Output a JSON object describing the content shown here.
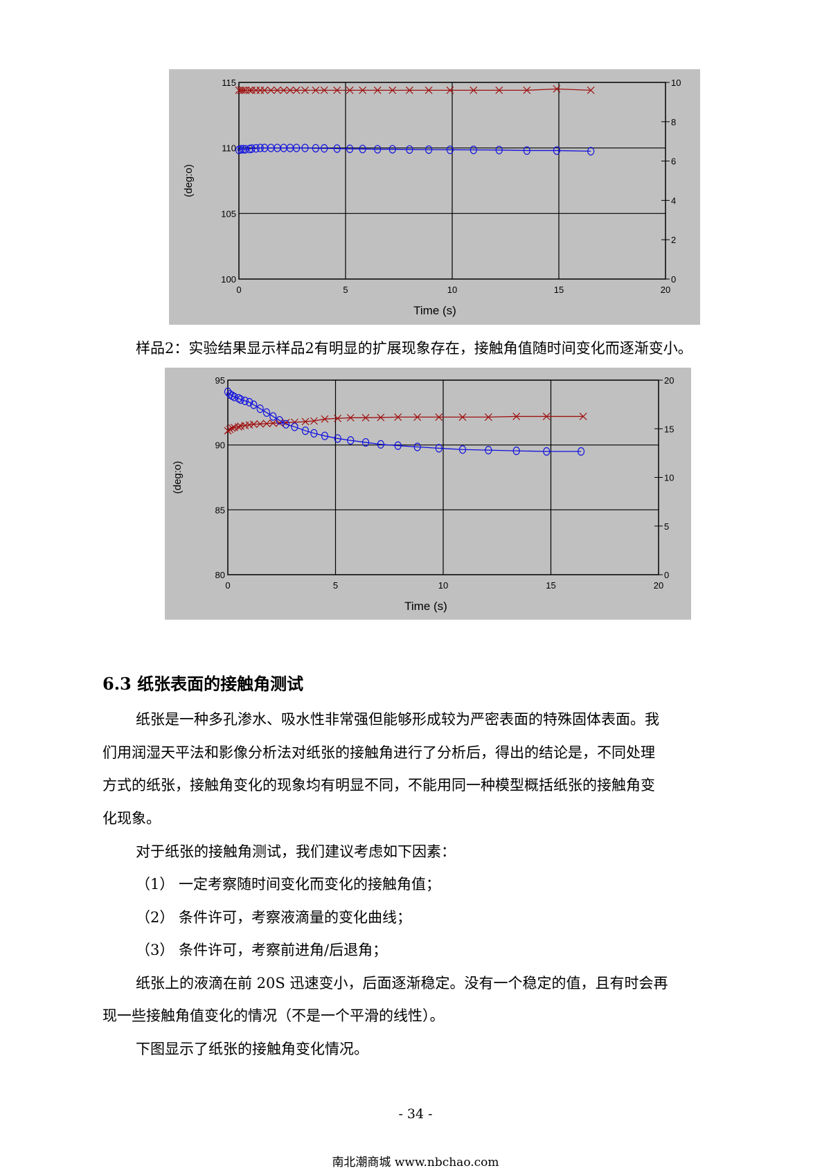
{
  "chart_data": [
    {
      "type": "line",
      "xlabel": "Time (s)",
      "ylabel": "(deg:o)",
      "xlim": [
        0,
        20
      ],
      "ylim": [
        100,
        115
      ],
      "y2lim": [
        0,
        10
      ],
      "xticks": [
        "0",
        "5",
        "10",
        "15",
        "20"
      ],
      "yticks": [
        "100",
        "105",
        "110",
        "115"
      ],
      "y2ticks": [
        "0",
        "2",
        "4",
        "6",
        "8",
        "10"
      ],
      "grid": true,
      "series": [
        {
          "marker": "x",
          "color": "#a01010",
          "axis": "left",
          "x": [
            0,
            0.1,
            0.2,
            0.3,
            0.5,
            0.6,
            0.8,
            1.0,
            1.2,
            1.5,
            1.8,
            2.1,
            2.4,
            2.7,
            3.1,
            3.6,
            4.0,
            4.6,
            5.2,
            5.8,
            6.5,
            7.2,
            8.0,
            8.9,
            9.9,
            11.0,
            12.2,
            13.5,
            14.9,
            16.5
          ],
          "y": [
            114.4,
            114.4,
            114.4,
            114.4,
            114.4,
            114.4,
            114.4,
            114.4,
            114.4,
            114.4,
            114.4,
            114.4,
            114.4,
            114.4,
            114.4,
            114.4,
            114.4,
            114.4,
            114.4,
            114.4,
            114.4,
            114.4,
            114.4,
            114.4,
            114.4,
            114.4,
            114.4,
            114.4,
            114.5,
            114.4
          ]
        },
        {
          "marker": "o",
          "color": "#1010e0",
          "axis": "left",
          "x": [
            0,
            0.1,
            0.2,
            0.3,
            0.5,
            0.6,
            0.8,
            1.0,
            1.2,
            1.5,
            1.8,
            2.1,
            2.4,
            2.7,
            3.1,
            3.6,
            4.0,
            4.6,
            5.2,
            5.8,
            6.5,
            7.2,
            8.0,
            8.9,
            9.9,
            11.0,
            12.2,
            13.5,
            14.9,
            16.5
          ],
          "y": [
            109.85,
            109.9,
            109.9,
            109.9,
            109.92,
            109.95,
            109.97,
            110.0,
            110.0,
            110.0,
            110.0,
            110.0,
            110.0,
            110.0,
            110.0,
            109.98,
            109.97,
            109.95,
            109.93,
            109.92,
            109.9,
            109.9,
            109.88,
            109.87,
            109.86,
            109.85,
            109.84,
            109.8,
            109.8,
            109.75
          ]
        }
      ]
    },
    {
      "type": "line",
      "xlabel": "Time (s)",
      "ylabel": "(deg:o)",
      "xlim": [
        0,
        20
      ],
      "ylim": [
        80,
        95
      ],
      "y2lim": [
        0,
        20
      ],
      "xticks": [
        "0",
        "5",
        "10",
        "15",
        "20"
      ],
      "yticks": [
        "80",
        "85",
        "90",
        "95"
      ],
      "y2ticks": [
        "0",
        "5",
        "10",
        "15",
        "20"
      ],
      "grid": true,
      "series": [
        {
          "marker": "x",
          "color": "#a01010",
          "axis": "left",
          "x": [
            0,
            0.1,
            0.2,
            0.3,
            0.5,
            0.6,
            0.8,
            1.0,
            1.2,
            1.5,
            1.8,
            2.1,
            2.4,
            2.7,
            3.1,
            3.6,
            4.0,
            4.5,
            5.1,
            5.7,
            6.4,
            7.1,
            7.9,
            8.8,
            9.8,
            10.9,
            12.1,
            13.4,
            14.8,
            16.5
          ],
          "y": [
            91.1,
            91.2,
            91.3,
            91.35,
            91.4,
            91.45,
            91.5,
            91.55,
            91.6,
            91.62,
            91.65,
            91.68,
            91.7,
            91.72,
            91.75,
            91.8,
            91.85,
            92.0,
            92.05,
            92.1,
            92.1,
            92.12,
            92.15,
            92.15,
            92.15,
            92.15,
            92.15,
            92.2,
            92.2,
            92.2
          ]
        },
        {
          "marker": "o",
          "color": "#1010e0",
          "axis": "left",
          "x": [
            0,
            0.1,
            0.2,
            0.3,
            0.5,
            0.6,
            0.8,
            1.0,
            1.2,
            1.5,
            1.8,
            2.1,
            2.4,
            2.7,
            3.1,
            3.6,
            4.0,
            4.5,
            5.1,
            5.7,
            6.4,
            7.1,
            7.9,
            8.8,
            9.8,
            10.9,
            12.1,
            13.4,
            14.8,
            16.4
          ],
          "y": [
            94.1,
            93.9,
            93.8,
            93.7,
            93.6,
            93.5,
            93.4,
            93.3,
            93.1,
            92.8,
            92.5,
            92.2,
            91.9,
            91.6,
            91.4,
            91.1,
            90.9,
            90.7,
            90.5,
            90.35,
            90.2,
            90.05,
            89.95,
            89.85,
            89.75,
            89.65,
            89.6,
            89.55,
            89.5,
            89.5
          ]
        }
      ]
    }
  ],
  "caption_sample2": "样品2：实验结果显示样品2有明显的扩展现象存在，接触角值随时间变化而逐渐变小。",
  "section_heading": "6.3 纸张表面的接触角测试",
  "paragraphs": [
    "纸张是一种多孔渗水、吸水性非常强但能够形成较为严密表面的特殊固体表面。我",
    "们用润湿天平法和影像分析法对纸张的接触角进行了分析后，得出的结论是，不同处理",
    "方式的纸张，接触角变化的现象均有明显不同，不能用同一种模型概括纸张的接触角变",
    "化现象。",
    "对于纸张的接触角测试，我们建议考虑如下因素：",
    "（1）  一定考察随时间变化而变化的接触角值；",
    "（2）  条件许可，考察液滴量的变化曲线；",
    "（3）  条件许可，考察前进角/后退角；",
    "纸张上的液滴在前 20S 迅速变小，后面逐渐稳定。没有一个稳定的值，且有时会再",
    "现一些接触角值变化的情况（不是一个平滑的线性）。",
    "下图显示了纸张的接触角变化情况。"
  ],
  "page_number": "- 34 -",
  "footer": "南北潮商城 www.nbchao.com"
}
